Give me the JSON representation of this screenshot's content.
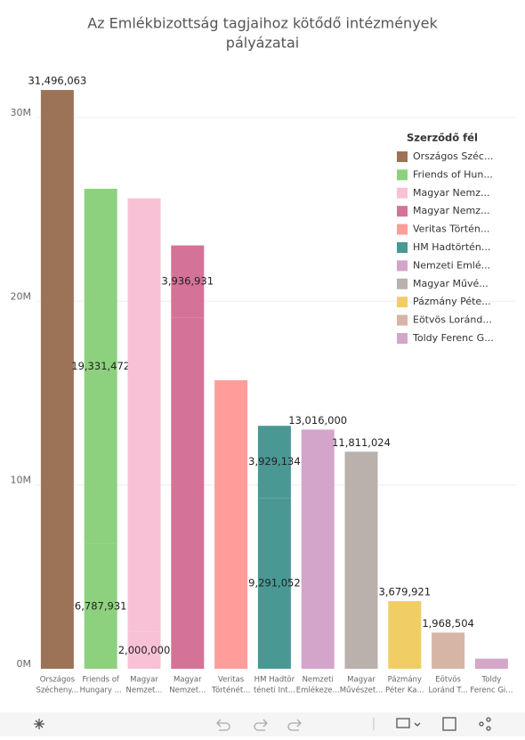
{
  "chart_data": {
    "type": "stacked-bar",
    "title": [
      "Az Emlékbizottság tagjaihoz kötődő intézmények",
      "pályázatai"
    ],
    "legend_title": "Szerződő fél",
    "legend_position": "right",
    "ylim": [
      0,
      33000000
    ],
    "yticks": [
      {
        "value": 0,
        "label": "0M"
      },
      {
        "value": 10000000,
        "label": "10M"
      },
      {
        "value": 20000000,
        "label": "20M"
      },
      {
        "value": 30000000,
        "label": "30M"
      }
    ],
    "grid": true,
    "bars": [
      {
        "category": [
          "Országos",
          "Szécheny..."
        ],
        "name": "Országos Széc...",
        "color": "#9c7357",
        "values": [
          31496063
        ],
        "value_labels": [
          "31,496,063"
        ]
      },
      {
        "category": [
          "Friends of",
          "Hungary ..."
        ],
        "name": "Friends of Hun...",
        "color": "#8dd17e",
        "values": [
          6787931,
          19331472
        ],
        "value_labels": [
          "6,787,931",
          "19,331,472"
        ]
      },
      {
        "category": [
          "Magyar",
          "Nemzet..."
        ],
        "name": "Magyar Nemz...",
        "color": "#f9c1d6",
        "values": [
          2000000,
          23600000
        ],
        "value_labels": [
          "2,000,000",
          null
        ]
      },
      {
        "category": [
          "Magyar",
          "Nemzet..."
        ],
        "name": "Magyar Nemz...",
        "color": "#d57297",
        "values": [
          19100000,
          3936931
        ],
        "value_labels": [
          null,
          "3,936,931"
        ]
      },
      {
        "category": [
          "Veritas",
          "Történét..."
        ],
        "name": "Veritas Történ...",
        "color": "#ff9d9a",
        "values": [
          15700000
        ],
        "value_labels": [
          null
        ]
      },
      {
        "category": [
          "HM Hadtör",
          "téneti Int..."
        ],
        "name": "HM Hadtörtén...",
        "color": "#499894",
        "values": [
          9291052,
          3929134
        ],
        "value_labels": [
          "9,291,052",
          "3,929,134"
        ]
      },
      {
        "category": [
          "Nemzeti",
          "Emlékeze..."
        ],
        "name": "Nemzeti Emlé...",
        "color": "#d3a5cb",
        "values": [
          13016000
        ],
        "value_labels": [
          "13,016,000"
        ]
      },
      {
        "category": [
          "Magyar",
          "Művészet..."
        ],
        "name": "Magyar Művé...",
        "color": "#bab0ac",
        "values": [
          11811024
        ],
        "value_labels": [
          "11,811,024"
        ]
      },
      {
        "category": [
          "Pázmány",
          "Péter Ka..."
        ],
        "name": "Pázmány Péte...",
        "color": "#f1ce63",
        "values": [
          3679921
        ],
        "value_labels": [
          "3,679,921"
        ]
      },
      {
        "category": [
          "Eötvös",
          "Loránd T..."
        ],
        "name": "Eötvös Loránd...",
        "color": "#d7b5a6",
        "values": [
          1968504
        ],
        "value_labels": [
          "1,968,504"
        ]
      },
      {
        "category": [
          "Toldy",
          "Ferenc Gi..."
        ],
        "name": "Toldy Ferenc G...",
        "color": "#d4a6c8",
        "values": [
          550000
        ],
        "value_labels": [
          null
        ]
      }
    ]
  }
}
